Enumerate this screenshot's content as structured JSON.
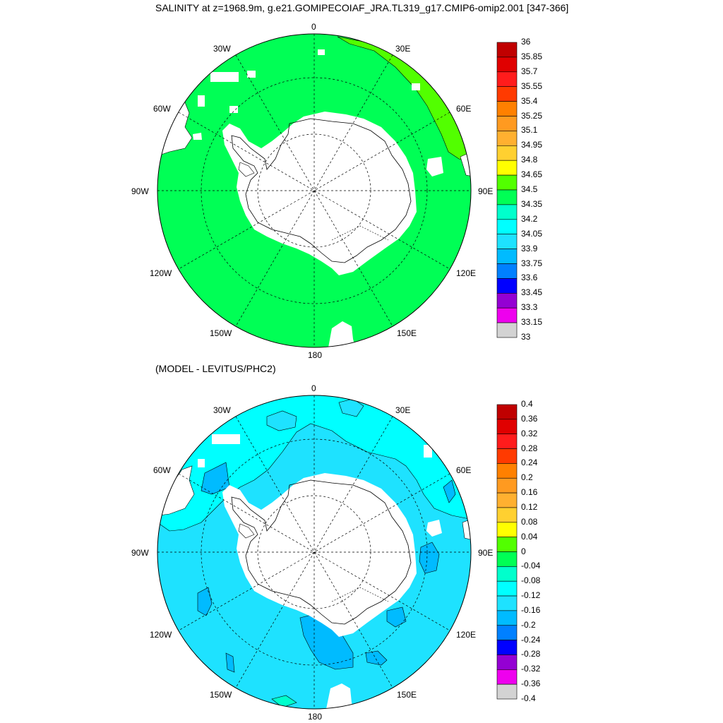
{
  "main_title": "SALINITY at z=1968.9m, g.e21.GOMIPECOIAF_JRA.TL319_g17.CMIP6-omip2.001 [347-366]",
  "subtitle_2": "(MODEL - LEVITUS/PHC2)",
  "lon_labels": {
    "l0": "0",
    "l30e": "30E",
    "l60e": "60E",
    "l90e": "90E",
    "l120e": "120E",
    "l150e": "150E",
    "l180": "180",
    "l150w": "150W",
    "l120w": "120W",
    "l90w": "90W",
    "l60w": "60W",
    "l30w": "30W"
  },
  "colorbar_top": {
    "labels": [
      "36",
      "35.85",
      "35.7",
      "35.55",
      "35.4",
      "35.25",
      "35.1",
      "34.95",
      "34.8",
      "34.65",
      "34.5",
      "34.35",
      "34.2",
      "34.05",
      "33.9",
      "33.75",
      "33.6",
      "33.45",
      "33.3",
      "33.15",
      "33"
    ],
    "colors": [
      "#c00000",
      "#e00000",
      "#ff1c1c",
      "#ff3a00",
      "#ff8000",
      "#ff9a20",
      "#ffb030",
      "#ffd030",
      "#ffff00",
      "#52ff00",
      "#00ff55",
      "#00ffcc",
      "#00ffff",
      "#1ee2ff",
      "#00bbff",
      "#0080ff",
      "#0000ff",
      "#9400d3",
      "#ee00ee",
      "#d3d3d3",
      "#707070"
    ]
  },
  "colorbar_bottom": {
    "labels": [
      "0.4",
      "0.36",
      "0.32",
      "0.28",
      "0.24",
      "0.2",
      "0.16",
      "0.12",
      "0.08",
      "0.04",
      "0",
      "-0.04",
      "-0.08",
      "-0.12",
      "-0.16",
      "-0.2",
      "-0.24",
      "-0.28",
      "-0.32",
      "-0.36",
      "-0.4"
    ],
    "colors": [
      "#c00000",
      "#e00000",
      "#ff1c1c",
      "#ff3a00",
      "#ff8000",
      "#ff9a20",
      "#ffb030",
      "#ffd030",
      "#ffff00",
      "#52ff00",
      "#00ff55",
      "#00ffcc",
      "#00ffff",
      "#1ee2ff",
      "#00bbff",
      "#0080ff",
      "#0000ff",
      "#9400d3",
      "#ee00ee",
      "#d3d3d3",
      "#707070"
    ]
  },
  "colors": {
    "top_ocean": "#00ff55",
    "top_warm_band": "#52ff00",
    "bottom_ocean": "#1ee2ff",
    "bottom_light": "#00ffff",
    "bottom_dark": "#00bbff",
    "bottom_pos": "#00ffcc",
    "land": "#ffffff"
  }
}
